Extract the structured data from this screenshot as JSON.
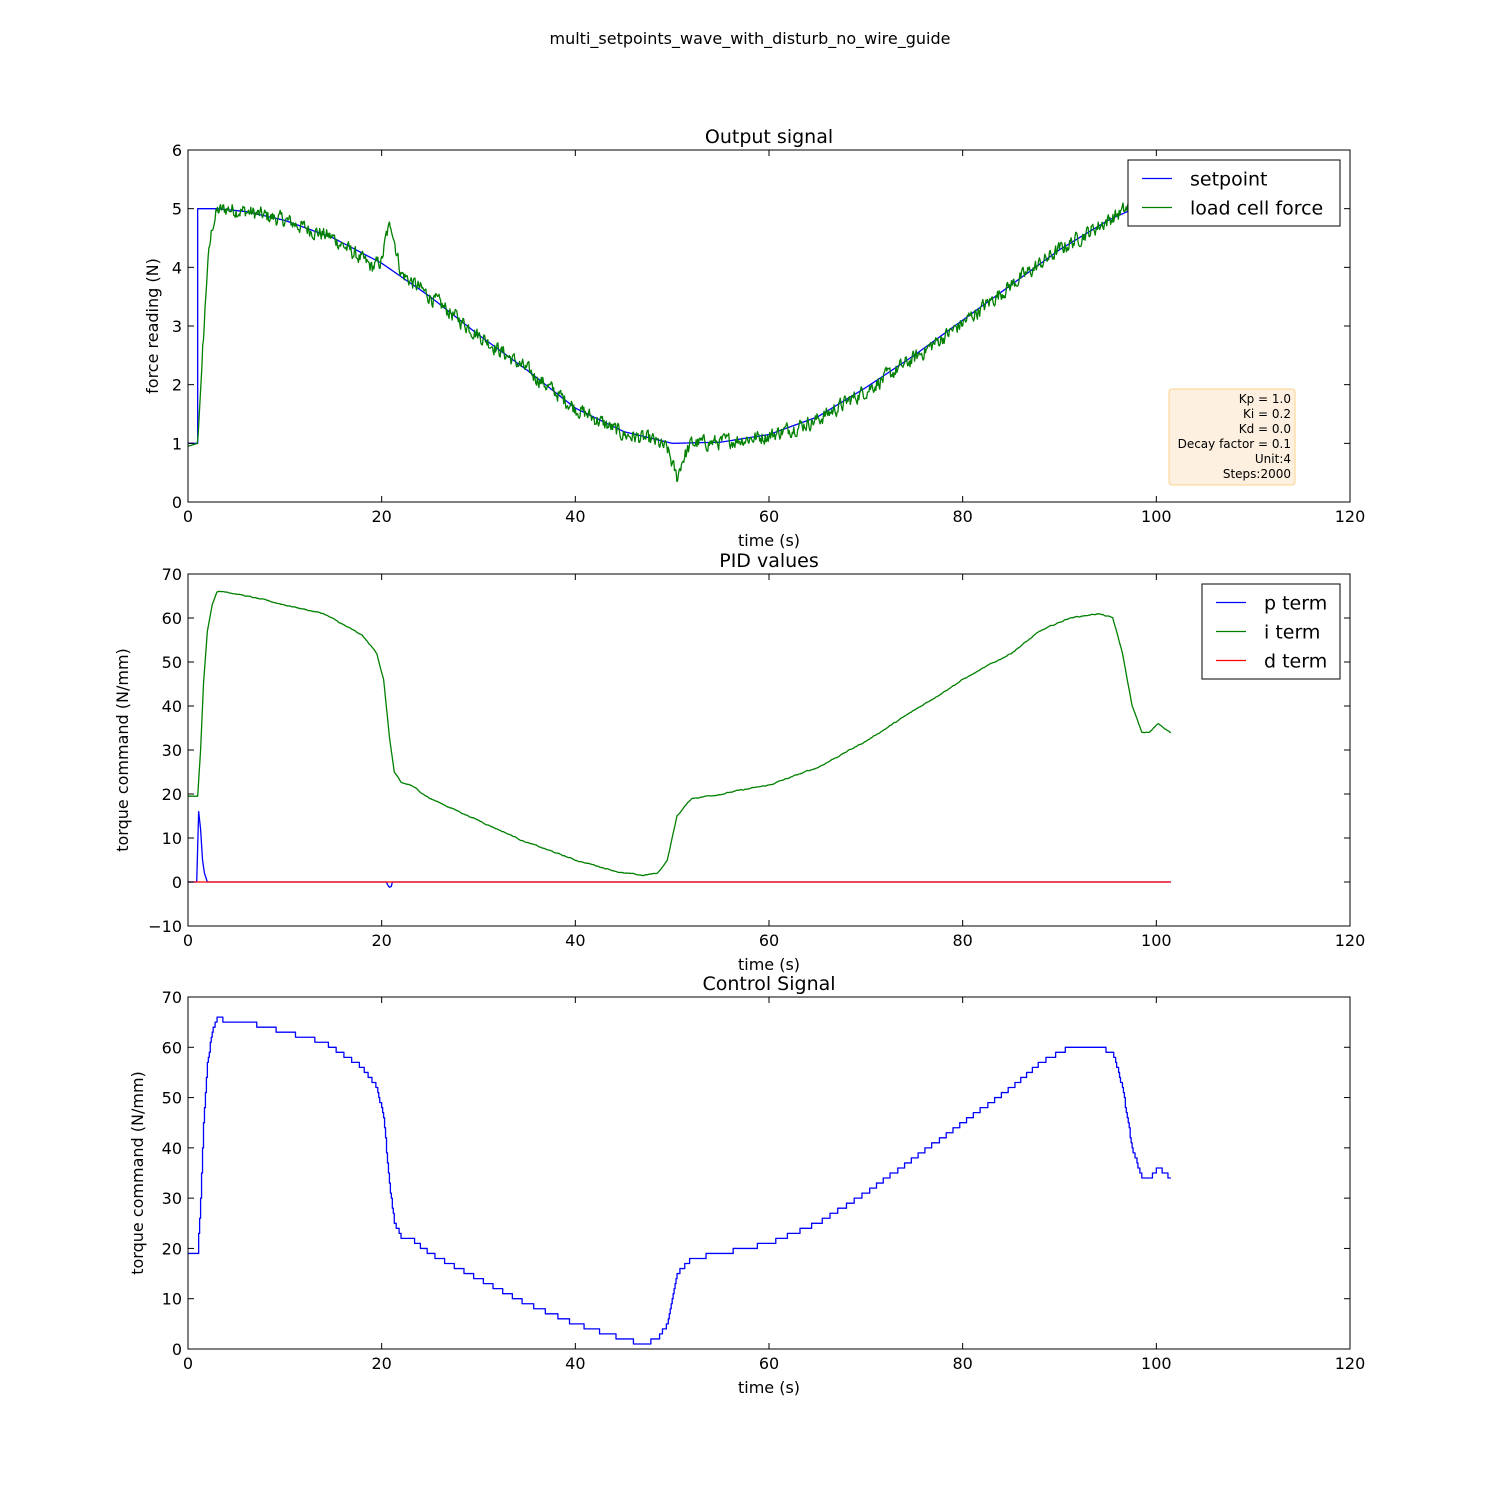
{
  "figure": {
    "suptitle": "multi_setpoints_wave_with_disturb_no_wire_guide"
  },
  "chart_data": [
    {
      "type": "line",
      "title": "Output signal",
      "xlabel": "time (s)",
      "ylabel": "force reading (N)",
      "xlim": [
        0,
        120
      ],
      "ylim": [
        0,
        6
      ],
      "xticks": [
        "0",
        "20",
        "40",
        "60",
        "80",
        "100",
        "120"
      ],
      "yticks": [
        "0",
        "1",
        "2",
        "3",
        "4",
        "5",
        "6"
      ],
      "grid": false,
      "legend": "top-right",
      "series": [
        {
          "name": "setpoint",
          "color": "#0000ff",
          "kind": "setpoint_wave",
          "x": [
            0,
            1,
            1,
            3,
            6,
            10,
            15,
            20,
            25,
            30,
            35,
            40,
            45,
            50,
            55,
            60,
            65,
            70,
            75,
            80,
            85,
            90,
            95,
            97,
            100,
            101.5
          ],
          "y": [
            1.0,
            1.0,
            5.0,
            5.0,
            4.95,
            4.8,
            4.5,
            4.07,
            3.5,
            2.85,
            2.25,
            1.6,
            1.2,
            1.0,
            1.02,
            1.15,
            1.45,
            1.95,
            2.5,
            3.1,
            3.7,
            4.3,
            4.8,
            4.95,
            5.0,
            5.0
          ]
        },
        {
          "name": "load cell force",
          "color": "#008000",
          "kind": "noisy_response",
          "x": [
            0,
            1,
            1.5,
            2,
            2.5,
            3,
            4,
            6,
            10,
            15,
            19,
            20,
            20.5,
            21,
            21.5,
            22,
            25,
            30,
            35,
            40,
            45,
            48,
            49.5,
            50.5,
            51,
            52,
            55,
            60,
            65,
            70,
            75,
            80,
            85,
            90,
            95,
            97,
            98.5
          ],
          "y": [
            0.95,
            1.0,
            2.5,
            4.0,
            4.7,
            4.95,
            5.0,
            4.95,
            4.8,
            4.5,
            4.0,
            4.1,
            4.55,
            4.75,
            4.3,
            3.9,
            3.5,
            2.85,
            2.25,
            1.6,
            1.15,
            1.05,
            0.9,
            0.4,
            0.7,
            1.0,
            1.02,
            1.13,
            1.4,
            1.9,
            2.45,
            3.05,
            3.7,
            4.3,
            4.8,
            5.0,
            5.55
          ]
        }
      ],
      "annotation": {
        "lines": [
          "Kp = 1.0",
          "Ki = 0.2",
          "Kd = 0.0",
          "Decay factor = 0.1",
          "Unit:4",
          "Steps:2000"
        ],
        "face_color": "#fdf0e0",
        "edge_color": "#fbd48a"
      }
    },
    {
      "type": "line",
      "title": "PID values",
      "xlabel": "time (s)",
      "ylabel": "torque command (N/mm)",
      "xlim": [
        0,
        120
      ],
      "ylim": [
        -10,
        70
      ],
      "xticks": [
        "0",
        "20",
        "40",
        "60",
        "80",
        "100",
        "120"
      ],
      "yticks": [
        "−10",
        "0",
        "10",
        "20",
        "30",
        "40",
        "50",
        "60",
        "70"
      ],
      "grid": false,
      "legend": "top-right",
      "series": [
        {
          "name": "p term",
          "color": "#0000ff",
          "kind": "plain",
          "x": [
            0,
            0.9,
            1.0,
            1.1,
            1.3,
            1.5,
            1.7,
            2.0,
            20.5,
            20.6,
            20.8,
            21.0,
            21.1,
            101.5
          ],
          "y": [
            0,
            0,
            8,
            16,
            12,
            5,
            2,
            0,
            0,
            -0.6,
            -1.2,
            -1.0,
            0,
            0
          ]
        },
        {
          "name": "i term",
          "color": "#008000",
          "kind": "wobbly",
          "x": [
            0,
            1,
            1.3,
            1.6,
            2,
            2.5,
            3,
            4,
            6,
            10,
            14,
            18,
            19.5,
            20.2,
            20.8,
            21.3,
            22,
            23,
            25,
            30,
            35,
            40,
            45,
            47,
            48.5,
            49.5,
            50.5,
            52,
            55,
            60,
            65,
            70,
            75,
            80,
            85,
            88,
            91,
            94,
            95.5,
            96.5,
            97.5,
            98.5,
            99.3,
            100.2,
            101.5
          ],
          "y": [
            19.5,
            19.5,
            30,
            45,
            57,
            63,
            66,
            66,
            65,
            63,
            61,
            56,
            52,
            46,
            33,
            25,
            22.5,
            22,
            19,
            14,
            9,
            5,
            2,
            1.5,
            2,
            5,
            15,
            19,
            20,
            22,
            26,
            32,
            39,
            46,
            52,
            57,
            60,
            61,
            60,
            52,
            40,
            34,
            34,
            36,
            34
          ]
        },
        {
          "name": "d term",
          "color": "#ff0000",
          "kind": "plain",
          "x": [
            0,
            101.5
          ],
          "y": [
            0,
            0
          ]
        }
      ]
    },
    {
      "type": "line",
      "title": "Control Signal",
      "xlabel": "time (s)",
      "ylabel": "torque command (N/mm)",
      "xlim": [
        0,
        120
      ],
      "ylim": [
        0,
        70
      ],
      "xticks": [
        "0",
        "20",
        "40",
        "60",
        "80",
        "100",
        "120"
      ],
      "yticks": [
        "0",
        "10",
        "20",
        "30",
        "40",
        "50",
        "60",
        "70"
      ],
      "grid": false,
      "legend": "none",
      "series": [
        {
          "name": "",
          "color": "#0000ff",
          "kind": "stepped",
          "x": [
            0,
            1,
            1.3,
            1.6,
            2,
            2.5,
            3,
            4,
            6,
            10,
            14,
            18,
            19.5,
            20.2,
            20.8,
            21.3,
            22,
            23,
            25,
            30,
            35,
            40,
            45,
            47,
            48.5,
            49.5,
            50.5,
            52,
            55,
            60,
            65,
            70,
            75,
            80,
            85,
            88,
            91,
            94,
            95.5,
            96.5,
            97.5,
            98.5,
            99.3,
            100.2,
            101.5
          ],
          "y": [
            19,
            19,
            30,
            45,
            57,
            63,
            66,
            65,
            65,
            63,
            61,
            56,
            52,
            46,
            33,
            25,
            22.5,
            22,
            19,
            14,
            9,
            5,
            2,
            1,
            2,
            5,
            15,
            18,
            19,
            21,
            25,
            31,
            38,
            45,
            52,
            57,
            60,
            60,
            59,
            52,
            40,
            34,
            34,
            36,
            34
          ]
        }
      ]
    }
  ]
}
